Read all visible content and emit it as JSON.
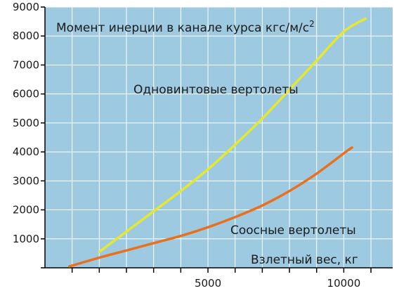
{
  "chart_data": {
    "type": "line",
    "title": "",
    "xlabel": "Взлетный вес, кг",
    "ylabel": "Момент инерции в канале курса кгс/м/с",
    "ylabel_sup": "2",
    "xlim": [
      -1000,
      11800
    ],
    "ylim": [
      0,
      9000
    ],
    "x_ticks": [
      0,
      1000,
      2000,
      3000,
      4000,
      5000,
      6000,
      7000,
      8000,
      9000,
      10000,
      11000
    ],
    "x_tick_labels": [
      {
        "value": 5000,
        "label": "5000"
      },
      {
        "value": 10000,
        "label": "10000"
      }
    ],
    "y_ticks": [
      0,
      1000,
      2000,
      3000,
      4000,
      5000,
      6000,
      7000,
      8000,
      9000
    ],
    "y_tick_labels": [
      "1000",
      "2000",
      "3000",
      "4000",
      "5000",
      "6000",
      "7000",
      "8000",
      "9000"
    ],
    "grid": true,
    "background_color": "#9ecae1",
    "series": [
      {
        "name": "Одновинтовые вертолеты",
        "color": "#e6e82e",
        "x": [
          1000,
          2000,
          3000,
          4000,
          5000,
          6000,
          7000,
          8000,
          9000,
          10000,
          10800
        ],
        "y": [
          550,
          1250,
          1950,
          2650,
          3400,
          4250,
          5150,
          6150,
          7150,
          8150,
          8600
        ]
      },
      {
        "name": "Соосные вертолеты",
        "color": "#e8701e",
        "x": [
          -100,
          1000,
          2000,
          3000,
          4000,
          5000,
          6000,
          7000,
          8000,
          9000,
          10000,
          10300
        ],
        "y": [
          50,
          350,
          600,
          850,
          1100,
          1400,
          1750,
          2150,
          2650,
          3250,
          3950,
          4150
        ]
      }
    ]
  }
}
